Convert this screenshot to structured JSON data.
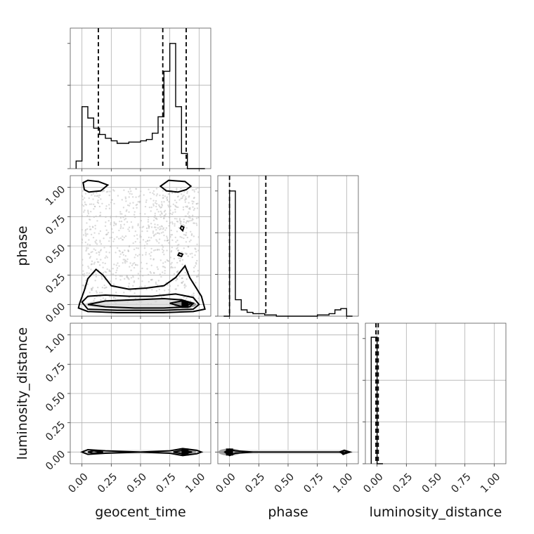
{
  "chart_data": {
    "type": "corner",
    "parameters": [
      "geocent_time",
      "phase",
      "luminosity_distance"
    ],
    "tick_values": [
      0.0,
      0.25,
      0.5,
      0.75,
      1.0
    ],
    "tick_labels": [
      "0.00",
      "0.25",
      "0.50",
      "0.75",
      "1.00"
    ],
    "grid": true,
    "range": [
      -0.1,
      1.1
    ],
    "marginals": [
      {
        "parameter": "geocent_time",
        "bin_edges": [
          -0.05,
          0.0,
          0.05,
          0.1,
          0.15,
          0.2,
          0.25,
          0.3,
          0.35,
          0.4,
          0.45,
          0.5,
          0.55,
          0.6,
          0.65,
          0.7,
          0.75,
          0.8,
          0.85,
          0.9,
          0.95,
          1.0,
          1.05
        ],
        "counts": [
          0.06,
          0.49,
          0.4,
          0.32,
          0.27,
          0.24,
          0.22,
          0.2,
          0.2,
          0.21,
          0.21,
          0.22,
          0.23,
          0.28,
          0.41,
          0.77,
          0.99,
          0.49,
          0.12,
          0.0,
          0.0,
          0.0
        ],
        "quantiles": [
          0.14,
          0.69,
          0.89
        ]
      },
      {
        "parameter": "phase",
        "bin_edges": [
          -0.05,
          0.0,
          0.05,
          0.1,
          0.15,
          0.2,
          0.25,
          0.3,
          0.35,
          0.4,
          0.45,
          0.5,
          0.55,
          0.6,
          0.65,
          0.7,
          0.75,
          0.8,
          0.85,
          0.9,
          0.95,
          1.0,
          1.05
        ],
        "counts": [
          0.0,
          0.99,
          0.13,
          0.05,
          0.03,
          0.02,
          0.02,
          0.01,
          0.01,
          0.0,
          0.0,
          0.0,
          0.0,
          0.0,
          0.0,
          0.0,
          0.01,
          0.01,
          0.02,
          0.05,
          0.06,
          0.0
        ],
        "quantiles": [
          0.0,
          0.31
        ]
      },
      {
        "parameter": "luminosity_distance",
        "bin_edges": [
          -0.05,
          0.0,
          0.05
        ],
        "counts": [
          1.0,
          0.0
        ],
        "quantiles": [
          -0.01,
          0.01
        ]
      }
    ],
    "joint": [
      {
        "x": "geocent_time",
        "y": "phase",
        "scatter_region": {
          "x": [
            0.0,
            1.0
          ],
          "y": [
            0.0,
            1.0
          ]
        },
        "mode": {
          "x": 0.88,
          "y": 0.0
        },
        "contours": [
          [
            [
              0.01,
              1.04
            ],
            [
              0.02,
              0.98
            ],
            [
              0.06,
              0.96
            ],
            [
              0.16,
              0.97
            ],
            [
              0.22,
              1.02
            ],
            [
              0.14,
              1.05
            ],
            [
              0.05,
              1.06
            ]
          ],
          [
            [
              0.67,
              1.01
            ],
            [
              0.72,
              0.97
            ],
            [
              0.82,
              0.96
            ],
            [
              0.89,
              0.98
            ],
            [
              0.93,
              1.01
            ],
            [
              0.88,
              1.05
            ],
            [
              0.74,
              1.06
            ]
          ],
          [
            [
              0.84,
              0.65
            ],
            [
              0.86,
              0.63
            ],
            [
              0.87,
              0.66
            ],
            [
              0.85,
              0.67
            ]
          ],
          [
            [
              0.82,
              0.42
            ],
            [
              0.85,
              0.41
            ],
            [
              0.86,
              0.43
            ],
            [
              0.83,
              0.44
            ]
          ],
          [
            [
              -0.02,
              0.01
            ],
            [
              0.02,
              0.12
            ],
            [
              0.05,
              0.22
            ],
            [
              0.12,
              0.3
            ],
            [
              0.18,
              0.25
            ],
            [
              0.25,
              0.16
            ],
            [
              0.4,
              0.13
            ],
            [
              0.55,
              0.14
            ],
            [
              0.7,
              0.16
            ],
            [
              0.8,
              0.23
            ],
            [
              0.88,
              0.33
            ],
            [
              0.92,
              0.23
            ],
            [
              1.02,
              0.07
            ],
            [
              1.05,
              -0.04
            ],
            [
              0.95,
              -0.06
            ],
            [
              0.7,
              -0.07
            ],
            [
              0.3,
              -0.07
            ],
            [
              0.05,
              -0.06
            ],
            [
              -0.03,
              -0.03
            ]
          ],
          [
            [
              0.0,
              0.02
            ],
            [
              0.05,
              0.07
            ],
            [
              0.2,
              0.08
            ],
            [
              0.4,
              0.07
            ],
            [
              0.6,
              0.07
            ],
            [
              0.8,
              0.09
            ],
            [
              0.95,
              0.06
            ],
            [
              1.0,
              0.0
            ],
            [
              0.95,
              -0.04
            ],
            [
              0.7,
              -0.05
            ],
            [
              0.3,
              -0.05
            ],
            [
              0.05,
              -0.04
            ]
          ],
          [
            [
              0.05,
              0.0
            ],
            [
              0.2,
              0.03
            ],
            [
              0.45,
              0.04
            ],
            [
              0.7,
              0.05
            ],
            [
              0.85,
              0.04
            ],
            [
              0.95,
              0.01
            ],
            [
              0.92,
              -0.02
            ],
            [
              0.7,
              -0.03
            ],
            [
              0.45,
              -0.03
            ],
            [
              0.2,
              -0.02
            ]
          ],
          [
            [
              0.75,
              0.01
            ],
            [
              0.85,
              0.03
            ],
            [
              0.94,
              0.01
            ],
            [
              0.86,
              -0.02
            ]
          ]
        ]
      },
      {
        "x": "geocent_time",
        "y": "luminosity_distance",
        "mode": {
          "x": 0.88,
          "y": 0.0
        },
        "contours": [
          [
            [
              0.0,
              0.0
            ],
            [
              0.05,
              0.02
            ],
            [
              0.2,
              0.01
            ],
            [
              0.5,
              0.0
            ],
            [
              0.75,
              0.01
            ],
            [
              0.86,
              0.03
            ],
            [
              0.98,
              0.015
            ],
            [
              1.02,
              0.0
            ],
            [
              0.98,
              -0.015
            ],
            [
              0.86,
              -0.03
            ],
            [
              0.75,
              -0.01
            ],
            [
              0.5,
              0.0
            ],
            [
              0.2,
              -0.01
            ],
            [
              0.05,
              -0.02
            ]
          ],
          [
            [
              0.05,
              0.0
            ],
            [
              0.1,
              0.01
            ],
            [
              0.18,
              0.0
            ],
            [
              0.1,
              -0.01
            ]
          ],
          [
            [
              0.78,
              0.0
            ],
            [
              0.86,
              0.015
            ],
            [
              0.94,
              0.0
            ],
            [
              0.86,
              -0.015
            ]
          ]
        ]
      },
      {
        "x": "phase",
        "y": "luminosity_distance",
        "mode": {
          "x": 0.0,
          "y": 0.0
        },
        "contours": [
          [
            [
              -0.04,
              0.0
            ],
            [
              0.0,
              0.025
            ],
            [
              0.05,
              0.01
            ],
            [
              0.2,
              0.0
            ],
            [
              0.95,
              0.0
            ],
            [
              1.02,
              0.0
            ],
            [
              0.97,
              -0.02
            ],
            [
              0.95,
              0.0
            ],
            [
              0.2,
              0.0
            ],
            [
              0.05,
              -0.01
            ],
            [
              0.0,
              -0.03
            ]
          ],
          [
            [
              0.94,
              0.0
            ],
            [
              0.98,
              0.015
            ],
            [
              1.03,
              0.0
            ],
            [
              0.98,
              -0.015
            ]
          ]
        ]
      }
    ]
  }
}
